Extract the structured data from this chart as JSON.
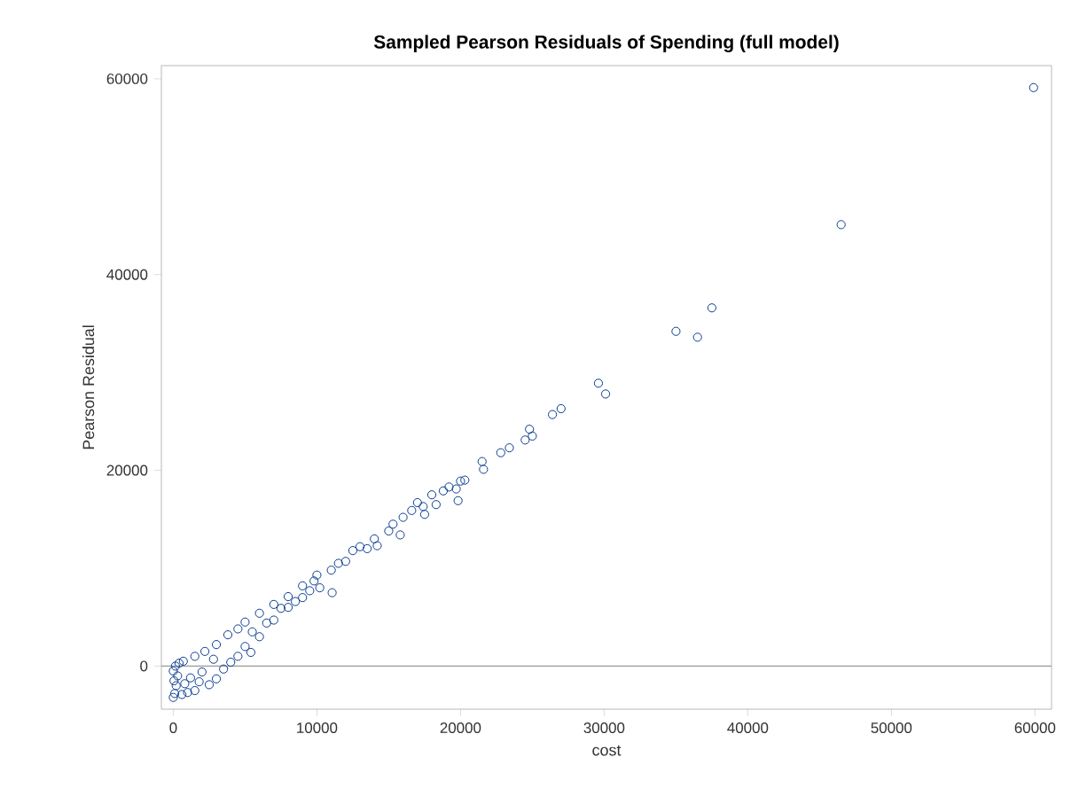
{
  "chart_data": {
    "type": "scatter",
    "title": "Sampled Pearson Residuals of Spending (full model)",
    "xlabel": "cost",
    "ylabel": "Pearson Residual",
    "xlim": [
      -830,
      61150
    ],
    "ylim": [
      -4400,
      61350
    ],
    "xticks": [
      0,
      10000,
      20000,
      30000,
      40000,
      50000,
      60000
    ],
    "yticks": [
      0,
      20000,
      40000,
      60000
    ],
    "grid": false,
    "marker": "circle",
    "ref_lines": [
      {
        "axis": "y",
        "value": 0,
        "color": "#999999"
      }
    ],
    "series": [
      {
        "color": "#0b3d91",
        "x": [
          0,
          100,
          200,
          50,
          300,
          0,
          150,
          400,
          600,
          1000,
          800,
          1200,
          700,
          1500,
          1800,
          2000,
          1500,
          2500,
          2200,
          3000,
          3000,
          3500,
          2800,
          4000,
          3800,
          4500,
          4500,
          5000,
          5000,
          5400,
          5500,
          6000,
          6000,
          6500,
          7000,
          7000,
          7500,
          8000,
          8000,
          8500,
          9000,
          9000,
          9500,
          9800,
          10000,
          10200,
          11060,
          11000,
          11500,
          12000,
          12500,
          13000,
          13500,
          14000,
          14200,
          15000,
          15300,
          15800,
          16000,
          16600,
          17000,
          17400,
          17500,
          18000,
          18300,
          18800,
          19200,
          19700,
          19830,
          20000,
          20300,
          21500,
          21600,
          22800,
          23400,
          24500,
          24800,
          25000,
          26400,
          27000,
          29600,
          30100,
          35000,
          36500,
          37500,
          46500,
          59900
        ],
        "values": [
          -3200,
          -2800,
          -2000,
          -1500,
          -1000,
          -500,
          0,
          300,
          -2900,
          -2700,
          -1800,
          -1200,
          500,
          -2500,
          -1600,
          -600,
          1000,
          -1900,
          1500,
          -1300,
          2200,
          -300,
          700,
          400,
          3200,
          1000,
          3800,
          2000,
          4500,
          1400,
          3500,
          5400,
          3000,
          4400,
          6300,
          4700,
          5900,
          7100,
          6000,
          6600,
          8200,
          7000,
          7700,
          8700,
          9300,
          8000,
          7500,
          9800,
          10500,
          10700,
          11800,
          12200,
          12000,
          13000,
          12300,
          13800,
          14500,
          13400,
          15200,
          15900,
          16700,
          16300,
          15500,
          17500,
          16500,
          17900,
          18300,
          18100,
          16900,
          18900,
          19000,
          20900,
          20100,
          21800,
          22300,
          23100,
          24200,
          23500,
          25700,
          26300,
          28900,
          27800,
          34200,
          33600,
          36600,
          45100,
          59100
        ]
      }
    ]
  }
}
